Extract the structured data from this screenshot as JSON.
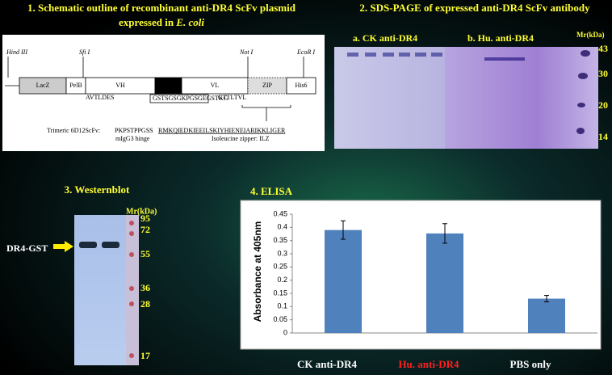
{
  "panel1": {
    "title_line1": "1. Schematic outline of recombinant  anti-DR4 ScFv plasmid",
    "title_line2": "expressed in",
    "title_italic": "E. coli",
    "sites": [
      "Hind III",
      "Sfi I",
      "Not I",
      "EcoR I"
    ],
    "segments": [
      "LacZ",
      "PelB",
      "VH",
      "Linker",
      "VL",
      "ZIP",
      "His6"
    ],
    "seq_left": "AVTLDES",
    "seq_linker": "GSTSGSGKPGSGEGSTKG",
    "seq_right": "GTTLTVL",
    "construct": "Trimeric  6D12ScFv:",
    "hinge_seq": "PKPSTPPGSS",
    "hinge_label": "mIgG3 hinge",
    "zipper_seq": "RMKQIEDKIEEILSKIYHIENEIARIKKLIGER",
    "zipper_label": "Isoleucine zipper: ILZ"
  },
  "panel2": {
    "title": "2. SDS-PAGE of expressed anti-DR4 ScFv antibody",
    "lane_a": "a. CK anti-DR4",
    "lane_b": "b. Hu. anti-DR4",
    "marker_title": "Mr(kDa)",
    "markers": [
      "43",
      "30",
      "20",
      "14"
    ]
  },
  "panel3": {
    "title": "3. Westernblot",
    "marker_title": "Mr(kDa)",
    "markers": [
      "95",
      "72",
      "55",
      "36",
      "28",
      "17"
    ],
    "band_label": "DR4-GST"
  },
  "chart_data": {
    "type": "bar",
    "title": "4. ELISA",
    "ylabel": "Absorbance at 405nm",
    "categories": [
      "CK anti-DR4",
      "Hu. anti-DR4",
      "PBS only"
    ],
    "category_colors": [
      "#ffffff",
      "#ff2020",
      "#ffffff"
    ],
    "values": [
      0.39,
      0.377,
      0.13
    ],
    "errors": [
      0.035,
      0.037,
      0.012
    ],
    "color": "#4f81bd",
    "ylim": [
      0,
      0.45
    ],
    "yticks": [
      0,
      0.05,
      0.1,
      0.15,
      0.2,
      0.25,
      0.3,
      0.35,
      0.4,
      0.45
    ]
  }
}
